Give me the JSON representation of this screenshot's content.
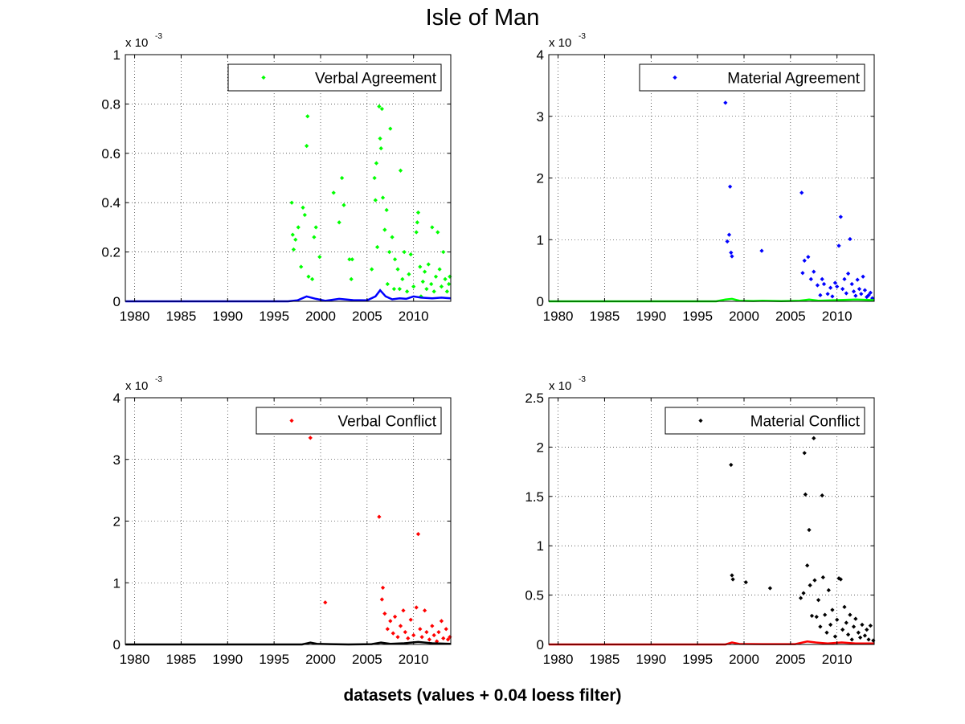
{
  "figure": {
    "title": "Isle of Man",
    "caption": "datasets (values + 0.04 loess filter)"
  },
  "chart_data": [
    {
      "type": "scatter",
      "legend": "Verbal Agreement",
      "legend_position": "top-right",
      "marker_color": "#00ff00",
      "line_color": "#0000ff",
      "exponent_label": "x 10",
      "exponent_power": "-3",
      "xlim": [
        1979,
        2014
      ],
      "ylim": [
        0,
        1
      ],
      "x_ticks": [
        1980,
        1985,
        1990,
        1995,
        2000,
        2005,
        2010
      ],
      "y_ticks": [
        0,
        0.2,
        0.4,
        0.6,
        0.8,
        1
      ],
      "y_tick_labels": [
        "0",
        "0.2",
        "0.4",
        "0.6",
        "0.8",
        "1"
      ],
      "grid": true,
      "points": [
        [
          1996.9,
          0.4
        ],
        [
          1997.0,
          0.27
        ],
        [
          1997.1,
          0.21
        ],
        [
          1997.3,
          0.25
        ],
        [
          1997.6,
          0.3
        ],
        [
          1997.9,
          0.14
        ],
        [
          1998.1,
          0.38
        ],
        [
          1998.3,
          0.35
        ],
        [
          1998.5,
          0.63
        ],
        [
          1998.6,
          0.75
        ],
        [
          1998.7,
          0.1
        ],
        [
          1999.1,
          0.09
        ],
        [
          1999.3,
          0.26
        ],
        [
          1999.5,
          0.3
        ],
        [
          1999.9,
          0.18
        ],
        [
          2001.4,
          0.44
        ],
        [
          2002.0,
          0.32
        ],
        [
          2002.3,
          0.5
        ],
        [
          2002.5,
          0.39
        ],
        [
          2003.1,
          0.17
        ],
        [
          2003.4,
          0.17
        ],
        [
          2003.3,
          0.09
        ],
        [
          2005.5,
          0.13
        ],
        [
          2005.8,
          0.5
        ],
        [
          2005.9,
          0.41
        ],
        [
          2006.0,
          0.56
        ],
        [
          2006.1,
          0.22
        ],
        [
          2006.3,
          0.79
        ],
        [
          2006.4,
          0.66
        ],
        [
          2006.5,
          0.62
        ],
        [
          2006.6,
          0.78
        ],
        [
          2006.7,
          0.42
        ],
        [
          2006.9,
          0.29
        ],
        [
          2007.1,
          0.37
        ],
        [
          2007.2,
          0.07
        ],
        [
          2007.4,
          0.2
        ],
        [
          2007.5,
          0.7
        ],
        [
          2007.7,
          0.26
        ],
        [
          2007.9,
          0.05
        ],
        [
          2008.0,
          0.17
        ],
        [
          2008.3,
          0.13
        ],
        [
          2008.5,
          0.05
        ],
        [
          2008.6,
          0.53
        ],
        [
          2008.8,
          0.09
        ],
        [
          2009.0,
          0.2
        ],
        [
          2009.3,
          0.04
        ],
        [
          2009.5,
          0.11
        ],
        [
          2009.7,
          0.19
        ],
        [
          2010.0,
          0.06
        ],
        [
          2010.3,
          0.28
        ],
        [
          2010.4,
          0.32
        ],
        [
          2010.5,
          0.36
        ],
        [
          2010.7,
          0.14
        ],
        [
          2010.8,
          0.02
        ],
        [
          2011.0,
          0.08
        ],
        [
          2011.2,
          0.12
        ],
        [
          2011.4,
          0.05
        ],
        [
          2011.6,
          0.15
        ],
        [
          2011.9,
          0.07
        ],
        [
          2012.0,
          0.3
        ],
        [
          2012.2,
          0.04
        ],
        [
          2012.4,
          0.1
        ],
        [
          2012.6,
          0.28
        ],
        [
          2012.8,
          0.13
        ],
        [
          2013.0,
          0.06
        ],
        [
          2013.2,
          0.2
        ],
        [
          2013.4,
          0.09
        ],
        [
          2013.6,
          0.04
        ],
        [
          2013.8,
          0.07
        ],
        [
          2013.9,
          0.1
        ]
      ],
      "smooth": [
        [
          1979,
          0
        ],
        [
          1996.5,
          0
        ],
        [
          1997.5,
          0.004
        ],
        [
          1998.5,
          0.02
        ],
        [
          1999.5,
          0.01
        ],
        [
          2000.5,
          0.002
        ],
        [
          2002,
          0.01
        ],
        [
          2003.5,
          0.005
        ],
        [
          2005,
          0.004
        ],
        [
          2005.9,
          0.02
        ],
        [
          2006.4,
          0.045
        ],
        [
          2007,
          0.02
        ],
        [
          2007.7,
          0.008
        ],
        [
          2008.5,
          0.012
        ],
        [
          2009.2,
          0.01
        ],
        [
          2010,
          0.02
        ],
        [
          2010.8,
          0.015
        ],
        [
          2012,
          0.012
        ],
        [
          2013,
          0.015
        ],
        [
          2014,
          0.012
        ]
      ]
    },
    {
      "type": "scatter",
      "legend": "Material Agreement",
      "legend_position": "top-right",
      "marker_color": "#0000ff",
      "line_color": "#00ff00",
      "exponent_label": "x 10",
      "exponent_power": "-3",
      "xlim": [
        1979,
        2014
      ],
      "ylim": [
        0,
        4
      ],
      "x_ticks": [
        1980,
        1985,
        1990,
        1995,
        2000,
        2005,
        2010
      ],
      "y_ticks": [
        0,
        1,
        2,
        3,
        4
      ],
      "y_tick_labels": [
        "0",
        "1",
        "2",
        "3",
        "4"
      ],
      "grid": true,
      "points": [
        [
          1998.0,
          3.22
        ],
        [
          1998.2,
          0.97
        ],
        [
          1998.4,
          1.08
        ],
        [
          1998.5,
          1.86
        ],
        [
          1998.6,
          0.79
        ],
        [
          1998.7,
          0.73
        ],
        [
          2001.9,
          0.82
        ],
        [
          2006.2,
          1.76
        ],
        [
          2006.3,
          0.46
        ],
        [
          2006.5,
          0.66
        ],
        [
          2006.9,
          0.72
        ],
        [
          2007.2,
          0.36
        ],
        [
          2007.5,
          0.48
        ],
        [
          2007.9,
          0.26
        ],
        [
          2008.2,
          0.1
        ],
        [
          2008.4,
          0.36
        ],
        [
          2008.6,
          0.28
        ],
        [
          2009.0,
          0.12
        ],
        [
          2009.3,
          0.22
        ],
        [
          2009.5,
          0.08
        ],
        [
          2009.8,
          0.3
        ],
        [
          2010.0,
          0.24
        ],
        [
          2010.2,
          0.9
        ],
        [
          2010.4,
          1.37
        ],
        [
          2010.6,
          0.2
        ],
        [
          2010.8,
          0.36
        ],
        [
          2011.0,
          0.13
        ],
        [
          2011.2,
          0.45
        ],
        [
          2011.4,
          1.01
        ],
        [
          2011.6,
          0.28
        ],
        [
          2011.8,
          0.16
        ],
        [
          2012.0,
          0.09
        ],
        [
          2012.2,
          0.35
        ],
        [
          2012.4,
          0.2
        ],
        [
          2012.6,
          0.12
        ],
        [
          2012.8,
          0.4
        ],
        [
          2013.0,
          0.18
        ],
        [
          2013.2,
          0.07
        ],
        [
          2013.4,
          0.1
        ],
        [
          2013.6,
          0.14
        ],
        [
          2013.8,
          0.05
        ]
      ],
      "smooth": [
        [
          1979,
          0
        ],
        [
          1997,
          0
        ],
        [
          1998,
          0.03
        ],
        [
          1998.7,
          0.04
        ],
        [
          1999.5,
          0.01
        ],
        [
          2001,
          0.005
        ],
        [
          2002,
          0.01
        ],
        [
          2004,
          0.002
        ],
        [
          2006,
          0.01
        ],
        [
          2007,
          0.03
        ],
        [
          2008,
          0.01
        ],
        [
          2010,
          0.02
        ],
        [
          2012,
          0.03
        ],
        [
          2014,
          0.02
        ]
      ]
    },
    {
      "type": "scatter",
      "legend": "Verbal Conflict",
      "legend_position": "top-right",
      "marker_color": "#ff0000",
      "line_color": "#000000",
      "exponent_label": "x 10",
      "exponent_power": "-3",
      "xlim": [
        1979,
        2014
      ],
      "ylim": [
        0,
        4
      ],
      "x_ticks": [
        1980,
        1985,
        1990,
        1995,
        2000,
        2005,
        2010
      ],
      "y_ticks": [
        0,
        1,
        2,
        3,
        4
      ],
      "y_tick_labels": [
        "0",
        "1",
        "2",
        "3",
        "4"
      ],
      "grid": true,
      "points": [
        [
          1998.9,
          3.35
        ],
        [
          2000.5,
          0.68
        ],
        [
          2006.3,
          2.07
        ],
        [
          2006.6,
          0.73
        ],
        [
          2006.7,
          0.92
        ],
        [
          2006.9,
          0.5
        ],
        [
          2007.2,
          0.25
        ],
        [
          2007.5,
          0.38
        ],
        [
          2007.8,
          0.18
        ],
        [
          2008.0,
          0.45
        ],
        [
          2008.3,
          0.12
        ],
        [
          2008.6,
          0.3
        ],
        [
          2008.9,
          0.55
        ],
        [
          2009.1,
          0.2
        ],
        [
          2009.4,
          0.1
        ],
        [
          2009.7,
          0.4
        ],
        [
          2010.0,
          0.15
        ],
        [
          2010.3,
          0.6
        ],
        [
          2010.5,
          1.79
        ],
        [
          2010.7,
          0.25
        ],
        [
          2010.9,
          0.12
        ],
        [
          2011.2,
          0.55
        ],
        [
          2011.4,
          0.2
        ],
        [
          2011.7,
          0.08
        ],
        [
          2012.0,
          0.3
        ],
        [
          2012.2,
          0.15
        ],
        [
          2012.5,
          0.05
        ],
        [
          2012.7,
          0.2
        ],
        [
          2013.0,
          0.38
        ],
        [
          2013.2,
          0.1
        ],
        [
          2013.5,
          0.25
        ],
        [
          2013.7,
          0.08
        ],
        [
          2013.9,
          0.12
        ]
      ],
      "smooth": [
        [
          1979,
          0
        ],
        [
          1998,
          0
        ],
        [
          1998.9,
          0.03
        ],
        [
          1999.6,
          0.01
        ],
        [
          2001,
          0.005
        ],
        [
          2003,
          0
        ],
        [
          2005.5,
          0.005
        ],
        [
          2006.5,
          0.03
        ],
        [
          2007.5,
          0.01
        ],
        [
          2009,
          0.02
        ],
        [
          2010.5,
          0.04
        ],
        [
          2012,
          0.02
        ],
        [
          2014,
          0.01
        ]
      ]
    },
    {
      "type": "scatter",
      "legend": "Material Conflict",
      "legend_position": "top-right",
      "marker_color": "#000000",
      "line_color": "#ff0000",
      "exponent_label": "x 10",
      "exponent_power": "-3",
      "xlim": [
        1979,
        2014
      ],
      "ylim": [
        0,
        2.5
      ],
      "x_ticks": [
        1980,
        1985,
        1990,
        1995,
        2000,
        2005,
        2010
      ],
      "y_ticks": [
        0,
        0.5,
        1,
        1.5,
        2,
        2.5
      ],
      "y_tick_labels": [
        "0",
        "0.5",
        "1",
        "1.5",
        "2",
        "2.5"
      ],
      "grid": true,
      "points": [
        [
          1998.6,
          1.82
        ],
        [
          1998.7,
          0.7
        ],
        [
          1998.8,
          0.66
        ],
        [
          2000.2,
          0.63
        ],
        [
          2002.8,
          0.57
        ],
        [
          2006.1,
          0.47
        ],
        [
          2006.4,
          0.52
        ],
        [
          2006.5,
          1.94
        ],
        [
          2006.6,
          1.52
        ],
        [
          2006.8,
          0.8
        ],
        [
          2007.0,
          1.16
        ],
        [
          2007.1,
          0.6
        ],
        [
          2007.3,
          0.29
        ],
        [
          2007.5,
          2.09
        ],
        [
          2007.6,
          0.65
        ],
        [
          2007.8,
          0.28
        ],
        [
          2008.0,
          0.45
        ],
        [
          2008.2,
          0.18
        ],
        [
          2008.4,
          1.51
        ],
        [
          2008.5,
          0.68
        ],
        [
          2008.7,
          0.3
        ],
        [
          2008.9,
          0.12
        ],
        [
          2009.1,
          0.55
        ],
        [
          2009.3,
          0.2
        ],
        [
          2009.5,
          0.35
        ],
        [
          2009.8,
          0.08
        ],
        [
          2010.0,
          0.25
        ],
        [
          2010.2,
          0.67
        ],
        [
          2010.4,
          0.66
        ],
        [
          2010.6,
          0.15
        ],
        [
          2010.8,
          0.38
        ],
        [
          2011.0,
          0.22
        ],
        [
          2011.2,
          0.1
        ],
        [
          2011.4,
          0.3
        ],
        [
          2011.6,
          0.05
        ],
        [
          2011.8,
          0.18
        ],
        [
          2012.0,
          0.26
        ],
        [
          2012.3,
          0.12
        ],
        [
          2012.5,
          0.07
        ],
        [
          2012.7,
          0.2
        ],
        [
          2013.0,
          0.09
        ],
        [
          2013.2,
          0.15
        ],
        [
          2013.4,
          0.05
        ],
        [
          2013.6,
          0.19
        ],
        [
          2013.9,
          0.04
        ]
      ],
      "smooth": [
        [
          1979,
          0
        ],
        [
          1998,
          0
        ],
        [
          1998.7,
          0.02
        ],
        [
          1999.5,
          0.005
        ],
        [
          2002,
          0.003
        ],
        [
          2005.5,
          0.003
        ],
        [
          2006.8,
          0.03
        ],
        [
          2007.7,
          0.02
        ],
        [
          2009,
          0.01
        ],
        [
          2010.5,
          0.02
        ],
        [
          2012,
          0.01
        ],
        [
          2014,
          0.01
        ]
      ]
    }
  ]
}
